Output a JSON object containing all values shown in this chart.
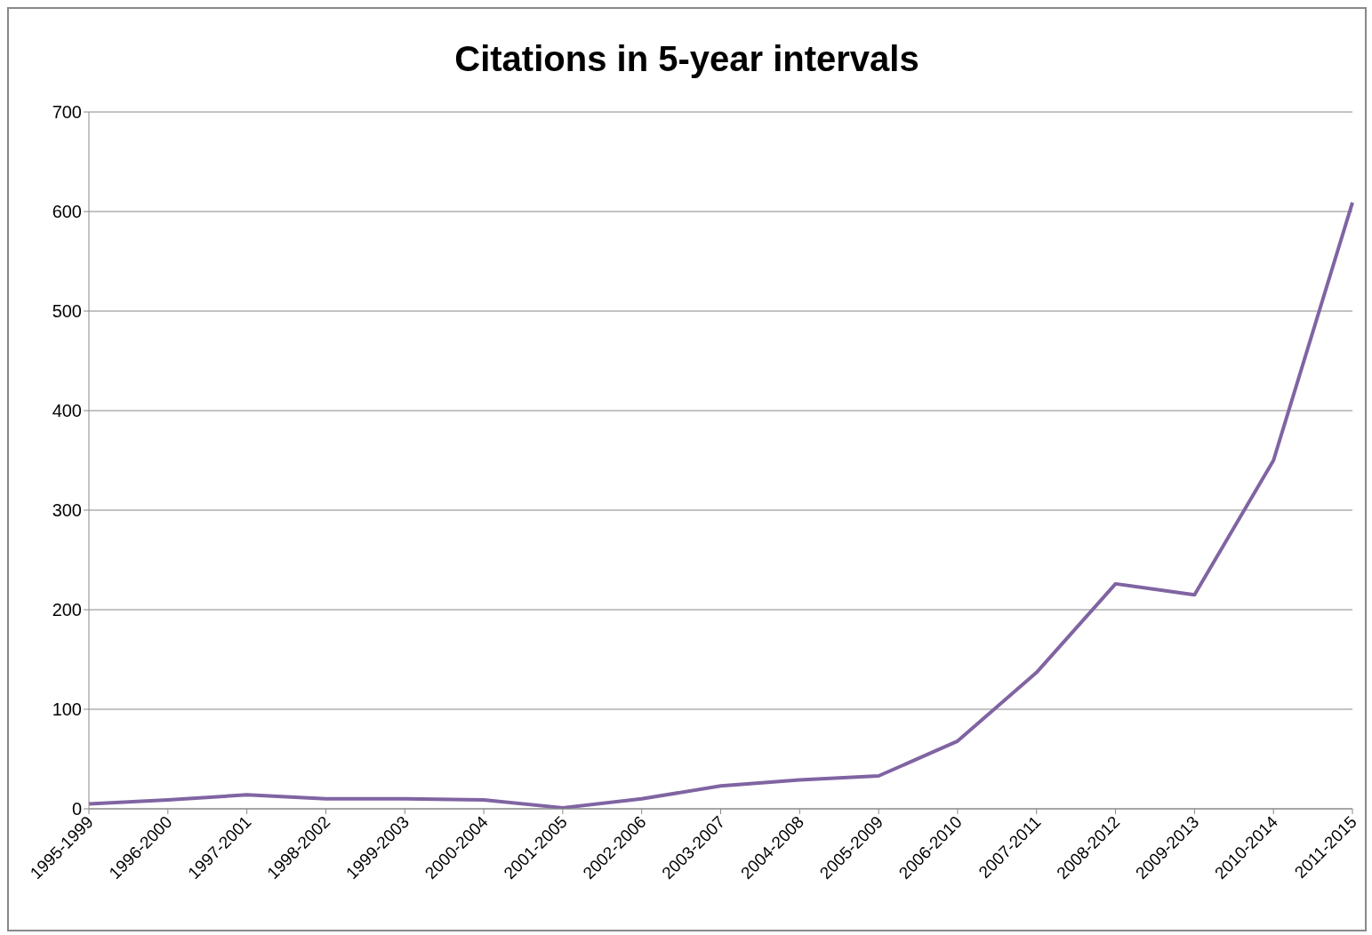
{
  "chart_data": {
    "type": "line",
    "title": "Citations in 5-year intervals",
    "categories": [
      "1995-1999",
      "1996-2000",
      "1997-2001",
      "1998-2002",
      "1999-2003",
      "2000-2004",
      "2001-2005",
      "2002-2006",
      "2003-2007",
      "2004-2008",
      "2005-2009",
      "2006-2010",
      "2007-2011",
      "2008-2012",
      "2009-2013",
      "2010-2014",
      "2011-2015"
    ],
    "series": [
      {
        "color": "#8064a2",
        "values": [
          5,
          9,
          14,
          10,
          10,
          9,
          1,
          10,
          23,
          29,
          33,
          68,
          137,
          226,
          215,
          350,
          609
        ]
      }
    ],
    "ylim": [
      0,
      700
    ],
    "yticks": [
      0,
      100,
      200,
      300,
      400,
      500,
      600,
      700
    ],
    "grid": "y",
    "legend": false,
    "marker": "none",
    "line_style": "solid"
  }
}
